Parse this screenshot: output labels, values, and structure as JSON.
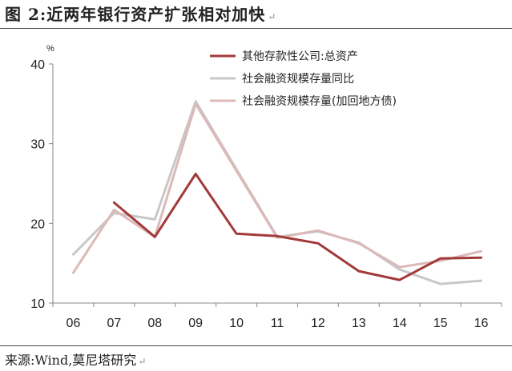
{
  "figure": {
    "title": "图 2:近两年银行资产扩张相对加快",
    "source": "来源:Wind,莫尼塔研究",
    "end_mark": "↵"
  },
  "chart_data": {
    "type": "line",
    "unit_label": "%",
    "x": [
      "06",
      "07",
      "08",
      "09",
      "10",
      "11",
      "12",
      "13",
      "14",
      "15",
      "16"
    ],
    "ylim": [
      10,
      40
    ],
    "yticks": [
      10,
      20,
      30,
      40
    ],
    "grid": false,
    "legend_position": "top-right",
    "series": [
      {
        "name": "其他存款性公司:总资产",
        "color": "#a33a3a",
        "values": [
          null,
          22.6,
          18.3,
          26.2,
          18.7,
          18.4,
          17.5,
          14.0,
          12.9,
          15.6,
          15.7
        ]
      },
      {
        "name": "社会融资规模存量同比",
        "color": "#c8c8c8",
        "values": [
          16.1,
          21.3,
          20.5,
          35.3,
          26.8,
          18.3,
          19.0,
          17.6,
          14.2,
          12.4,
          12.8
        ]
      },
      {
        "name": "社会融资规模存量(加回地方债)",
        "color": "#dcb9b9",
        "values": [
          13.8,
          21.7,
          18.3,
          35.0,
          26.6,
          18.2,
          19.1,
          17.5,
          14.5,
          15.3,
          16.5
        ]
      }
    ]
  }
}
